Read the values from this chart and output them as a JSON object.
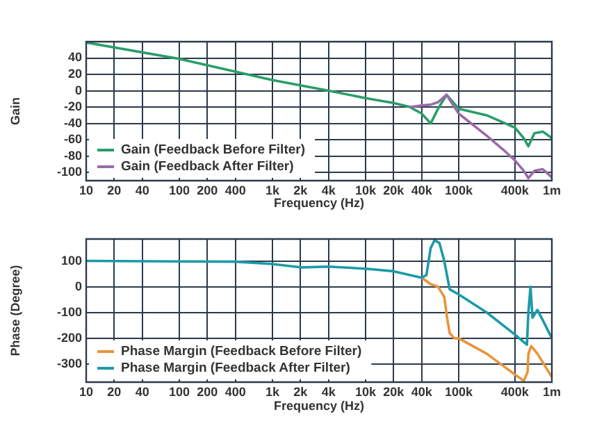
{
  "chart_data": [
    {
      "type": "line",
      "xlabel": "Frequency (Hz)",
      "ylabel": "Gain",
      "log": "x",
      "grid": true,
      "legend": "bottom left",
      "xlim": [
        10,
        1000000
      ],
      "xticks": [
        10,
        20,
        40,
        100,
        200,
        400,
        {
          "value": 1000,
          "label": "1k"
        },
        {
          "value": 2000,
          "label": "2k"
        },
        {
          "value": 4000,
          "label": "4k"
        },
        {
          "value": 10000,
          "label": "10k"
        },
        {
          "value": 20000,
          "label": "20k"
        },
        {
          "value": 40000,
          "label": "40k"
        },
        {
          "value": 100000,
          "label": "100k"
        },
        {
          "value": 400000,
          "label": "400k"
        },
        {
          "value": 1000000,
          "label": "1m"
        }
      ],
      "ylim": [
        -110,
        60
      ],
      "yticks": [
        40,
        20,
        0,
        -20,
        -40,
        -60,
        -80,
        -100
      ],
      "series": [
        {
          "name": "Gain (Feedback Before Filter)",
          "color": "#2a9d6a",
          "x": [
            10,
            100,
            1000,
            4000,
            10000,
            20000,
            30000,
            40000,
            50000,
            60000,
            74000,
            100000,
            200000,
            400000,
            500000,
            560000,
            650000,
            800000,
            1000000
          ],
          "values": [
            59,
            39,
            13,
            0,
            -9,
            -15,
            -20,
            -28,
            -40,
            -22,
            -5,
            -22,
            -30,
            -45,
            -58,
            -68,
            -52,
            -50,
            -58
          ]
        },
        {
          "name": "Gain (Feedback After Filter)",
          "color": "#9b6aa8",
          "x": [
            30000,
            40000,
            50000,
            60000,
            74000,
            100000,
            200000,
            300000,
            400000,
            500000,
            560000,
            650000,
            800000,
            1000000
          ],
          "values": [
            -20,
            -18,
            -17,
            -14,
            -5,
            -28,
            -55,
            -72,
            -85,
            -98,
            -107,
            -98,
            -96,
            -106
          ]
        }
      ]
    },
    {
      "type": "line",
      "xlabel": "Frequency (Hz)",
      "ylabel": "Phase (Degree)",
      "log": "x",
      "grid": true,
      "legend": "bottom left",
      "xlim": [
        10,
        1000000
      ],
      "xticks": [
        10,
        20,
        40,
        100,
        200,
        400,
        {
          "value": 1000,
          "label": "1k"
        },
        {
          "value": 2000,
          "label": "2k"
        },
        {
          "value": 4000,
          "label": "4k"
        },
        {
          "value": 10000,
          "label": "10k"
        },
        {
          "value": 20000,
          "label": "20k"
        },
        {
          "value": 40000,
          "label": "40k"
        },
        {
          "value": 100000,
          "label": "100k"
        },
        {
          "value": 400000,
          "label": "400k"
        },
        {
          "value": 1000000,
          "label": "1m"
        }
      ],
      "ylim": [
        -370,
        185
      ],
      "yticks": [
        100,
        0,
        -100,
        -200,
        -300
      ],
      "series": [
        {
          "name": "Phase Margin (Feedback Before Filter)",
          "color": "#e8943a",
          "x": [
            40000,
            50000,
            60000,
            70000,
            75000,
            80000,
            90000,
            100000,
            200000,
            400000,
            500000,
            550000,
            560000,
            600000,
            700000,
            1000000
          ],
          "values": [
            35,
            10,
            0,
            -40,
            -120,
            -180,
            -200,
            -200,
            -260,
            -340,
            -365,
            -330,
            -260,
            -230,
            -260,
            -350
          ]
        },
        {
          "name": "Phase Margin (Feedback After Filter)",
          "color": "#1b9aa8",
          "x": [
            10,
            400,
            1000,
            2000,
            4000,
            10000,
            20000,
            40000,
            45000,
            50000,
            55000,
            62000,
            70000,
            80000,
            100000,
            200000,
            400000,
            500000,
            540000,
            560000,
            590000,
            620000,
            700000,
            800000,
            1000000
          ],
          "values": [
            100,
            97,
            88,
            75,
            78,
            70,
            60,
            35,
            45,
            150,
            180,
            170,
            100,
            -10,
            -30,
            -100,
            -185,
            -215,
            -225,
            -100,
            0,
            -120,
            -90,
            -130,
            -200
          ]
        }
      ]
    }
  ]
}
